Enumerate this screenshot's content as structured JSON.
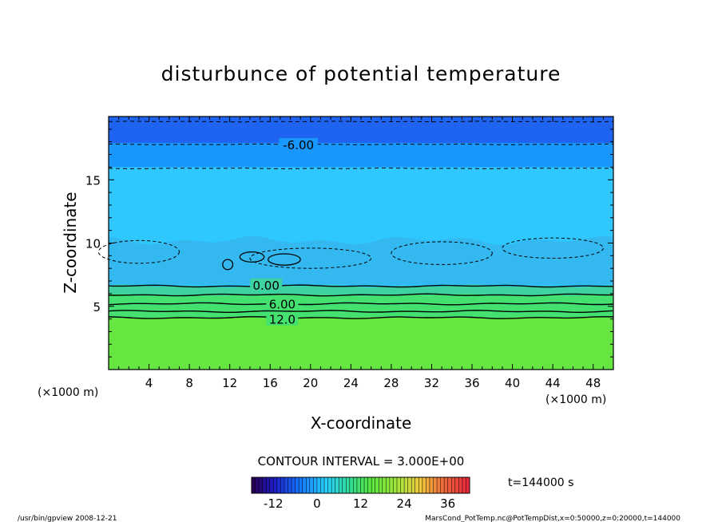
{
  "chart_data": {
    "type": "heatmap",
    "title": "disturbunce of potential temperature",
    "xlabel": "X-coordinate",
    "ylabel": "Z-coordinate",
    "x_unit_left": "(×1000 m)",
    "x_unit_right": "(×1000 m)",
    "xlim": [
      0,
      50
    ],
    "ylim": [
      0,
      20
    ],
    "x_ticks": [
      4,
      8,
      12,
      16,
      20,
      24,
      28,
      32,
      36,
      40,
      44,
      48
    ],
    "y_ticks": [
      5,
      10,
      15
    ],
    "contour_interval_text": "CONTOUR INTERVAL = 3.000E+00",
    "time_text": "t=144000 s",
    "contour_labels": [
      {
        "text": "-6.00",
        "x": 18.8,
        "z": 17.8
      },
      {
        "text": "0.00",
        "x": 15.6,
        "z": 6.7
      },
      {
        "text": "6.00",
        "x": 17.2,
        "z": 5.2
      },
      {
        "text": "12.0",
        "x": 17.2,
        "z": 4.0
      }
    ],
    "contour_levels_z": [
      {
        "value": -9,
        "z": 19.6,
        "style": "dashed"
      },
      {
        "value": -6,
        "z": 17.8,
        "style": "dashed"
      },
      {
        "value": -3,
        "z": 15.9,
        "style": "dashed"
      },
      {
        "value": 0,
        "z": 6.6,
        "style": "solid"
      },
      {
        "value": 3,
        "z": 5.9,
        "style": "solid"
      },
      {
        "value": 6,
        "z": 5.2,
        "style": "solid"
      },
      {
        "value": 9,
        "z": 4.6,
        "style": "solid"
      },
      {
        "value": 12,
        "z": 4.1,
        "style": "solid"
      }
    ],
    "colorbar": {
      "min": -18,
      "max": 42,
      "ticks": [
        -12,
        0,
        12,
        24,
        36
      ]
    },
    "colors": {
      "top": "#1e64f0",
      "upper": "#2ec8ff",
      "mid": "#34b8f0",
      "low": "#44e070",
      "surface": "#66e640"
    }
  },
  "footer": {
    "left": "/usr/bin/gpview   2008-12-21",
    "right": "MarsCond_PotTemp.nc@PotTempDist,x=0:50000,z=0:20000,t=144000"
  }
}
